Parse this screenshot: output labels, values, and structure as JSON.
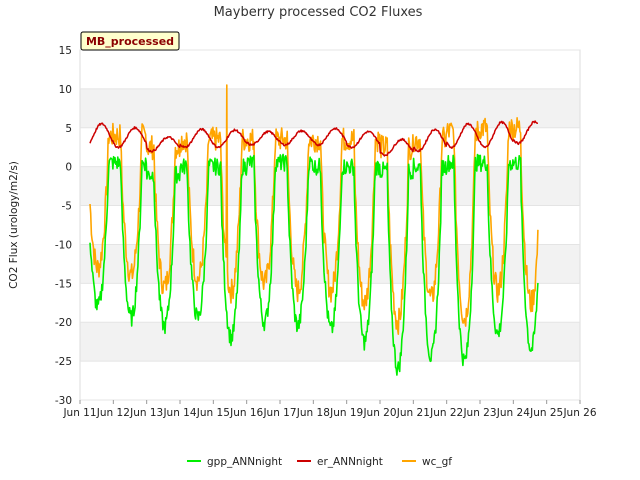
{
  "chart_data": {
    "type": "line",
    "title": "Mayberry processed CO2 Fluxes",
    "xlabel": "",
    "ylabel": "CO2 Flux (urology/m2/s)",
    "badge": "MB_processed",
    "xlim": [
      11,
      26
    ],
    "ylim": [
      -30,
      15
    ],
    "yticks": [
      15,
      10,
      5,
      0,
      -5,
      -10,
      -15,
      -20,
      -25,
      -30
    ],
    "xticks": [
      {
        "day": 11,
        "label": "Jun 11"
      },
      {
        "day": 12,
        "label": "Jun 12"
      },
      {
        "day": 13,
        "label": "Jun 13"
      },
      {
        "day": 14,
        "label": "Jun 14"
      },
      {
        "day": 15,
        "label": "Jun 15"
      },
      {
        "day": 16,
        "label": "Jun 16"
      },
      {
        "day": 17,
        "label": "Jun 17"
      },
      {
        "day": 18,
        "label": "Jun 18"
      },
      {
        "day": 19,
        "label": "Jun 19"
      },
      {
        "day": 20,
        "label": "Jun 20"
      },
      {
        "day": 21,
        "label": "Jun 21"
      },
      {
        "day": 22,
        "label": "Jun 22"
      },
      {
        "day": 23,
        "label": "Jun 23"
      },
      {
        "day": 24,
        "label": "Jun 24"
      },
      {
        "day": 25,
        "label": "Jun 25"
      },
      {
        "day": 26,
        "label": "Jun 26"
      }
    ],
    "x_start_day": 11.3,
    "x_end_day": 24.75,
    "legend": [
      {
        "name": "gpp_ANNnight",
        "color": "#00ee00"
      },
      {
        "name": "er_ANNnight",
        "color": "#cc0000"
      },
      {
        "name": "wc_gf",
        "color": "#ffa500"
      }
    ],
    "series": [
      {
        "name": "gpp_ANNnight",
        "color": "#00ee00",
        "daily_min": [
          -18,
          -19.5,
          -20.5,
          -19.5,
          -22,
          -20,
          -20.5,
          -21,
          -22.5,
          -26,
          -24.5,
          -25,
          -21.5,
          -23.5
        ],
        "night": [
          0.5,
          0.5,
          -1,
          0,
          0,
          0.5,
          0.5,
          0,
          0,
          -0.5,
          0,
          0.5,
          0.5,
          0.5
        ]
      },
      {
        "name": "er_ANNnight",
        "color": "#cc0000",
        "daily_max": [
          5.5,
          5.0,
          3.8,
          4.8,
          4.7,
          4.5,
          4.6,
          4.9,
          4.5,
          3.5,
          4.8,
          5.5,
          5.7,
          5.8
        ],
        "daily_min": [
          2.5,
          2.5,
          2.0,
          2.5,
          2.5,
          2.8,
          2.8,
          2.8,
          2.5,
          1.5,
          2.0,
          2.5,
          2.5,
          3.0
        ]
      },
      {
        "name": "wc_gf",
        "color": "#ffa500",
        "daily_min": [
          -13,
          -14,
          -15.5,
          -14.5,
          -16,
          -15,
          -16,
          -16,
          -17.5,
          -20,
          -17,
          -19.5,
          -16,
          -17.5
        ],
        "night": [
          4,
          4,
          2.5,
          3.5,
          3.5,
          3.5,
          3.5,
          3.5,
          3.5,
          2.5,
          3.5,
          4.5,
          5,
          5
        ],
        "peak_value": 10.5,
        "peak_day": 15.4
      }
    ]
  }
}
